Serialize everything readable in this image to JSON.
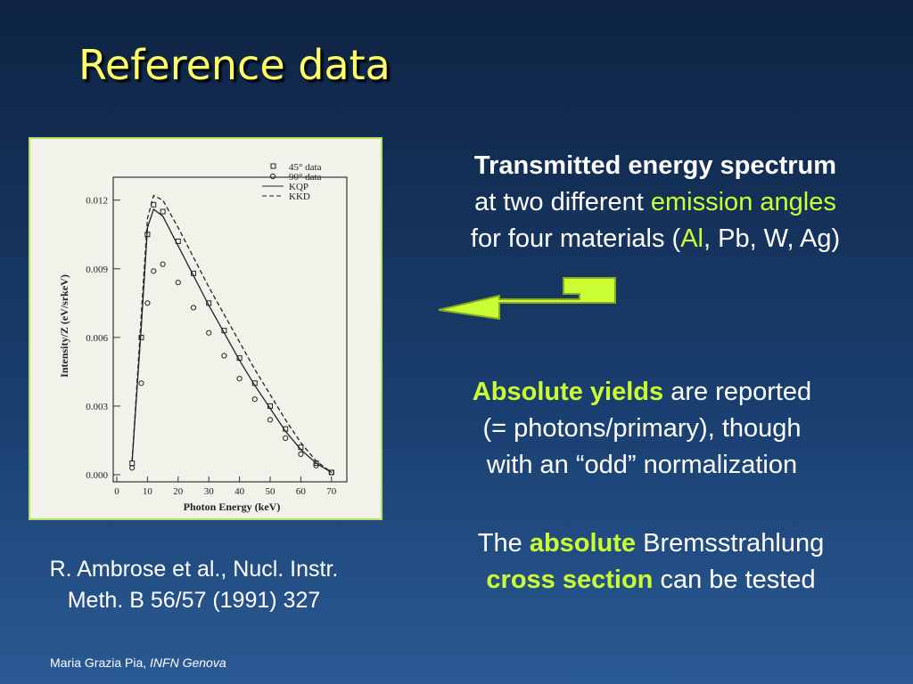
{
  "title": "Reference data",
  "chart_data": {
    "type": "line",
    "xlabel": "Photon Energy (keV)",
    "ylabel": "Intensity/Z (eV/srkeV)",
    "x": [
      5,
      8,
      10,
      12,
      15,
      20,
      25,
      30,
      35,
      40,
      45,
      50,
      55,
      60,
      65,
      70
    ],
    "series": [
      {
        "name": "45° data",
        "color": "#222222",
        "style": "square",
        "values": [
          0.0005,
          0.006,
          0.0105,
          0.0118,
          0.0115,
          0.0102,
          0.0088,
          0.0075,
          0.0063,
          0.0051,
          0.004,
          0.003,
          0.002,
          0.0012,
          0.0005,
          0.0001
        ]
      },
      {
        "name": "90° data",
        "color": "#222222",
        "style": "circle",
        "values": [
          0.0003,
          0.004,
          0.0075,
          0.0089,
          0.0092,
          0.0084,
          0.0073,
          0.0062,
          0.0052,
          0.0042,
          0.0033,
          0.0024,
          0.0016,
          0.0009,
          0.0004,
          0.0001
        ]
      },
      {
        "name": "KQP",
        "color": "#222222",
        "style": "solid",
        "values": [
          0.0006,
          0.0065,
          0.0108,
          0.0116,
          0.0113,
          0.01,
          0.0087,
          0.0074,
          0.0062,
          0.005,
          0.0039,
          0.0029,
          0.0019,
          0.0011,
          0.0005,
          0.0001
        ]
      },
      {
        "name": "KKD",
        "color": "#222222",
        "style": "dashed",
        "values": [
          0.0006,
          0.007,
          0.0112,
          0.0122,
          0.012,
          0.0108,
          0.0095,
          0.0082,
          0.007,
          0.0058,
          0.0046,
          0.0035,
          0.0024,
          0.0014,
          0.0006,
          0.0001
        ]
      }
    ],
    "xlim": [
      0,
      75
    ],
    "xticks": [
      0,
      10,
      20,
      30,
      40,
      50,
      60,
      70
    ],
    "ylim": [
      0,
      0.013
    ],
    "yticks": [
      {
        "value": 0,
        "label": "0.000"
      },
      0.003,
      0.006,
      0.009,
      0.012
    ],
    "legend": "upper right"
  },
  "blocks": [
    {
      "lines": [
        [
          "Transmitted energy spectrum"
        ],
        [
          "at two different ",
          "emission angles"
        ],
        [
          "for four materials (",
          "Al",
          ", Pb, W, Ag)"
        ]
      ]
    },
    {
      "lines": [
        [
          "Absolute yields",
          " are reported"
        ],
        [
          "(= photons/primary), though"
        ],
        [
          "with an “odd” normalization"
        ]
      ]
    },
    {
      "lines": [
        [
          "The ",
          "absolute",
          " Bremsstrahlung"
        ],
        [
          "cross section",
          " can be tested"
        ]
      ]
    }
  ],
  "citation": [
    "R. Ambrose et al., Nucl. Instr.",
    "Meth. B 56/57 (1991) 327"
  ],
  "footer": {
    "author": "Maria Grazia Pia, ",
    "affiliation": "INFN Genova"
  }
}
